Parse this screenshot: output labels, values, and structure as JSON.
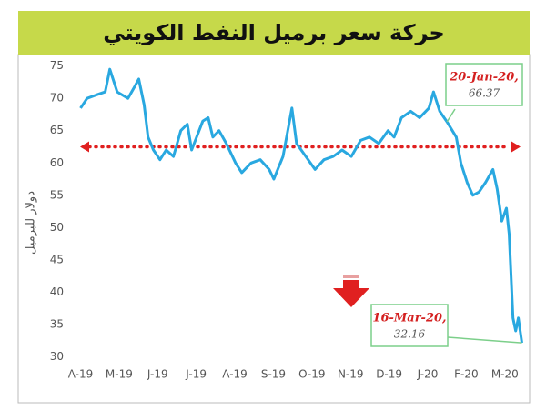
{
  "chart_data": {
    "type": "line",
    "title": "حركة سعر برميل النفط الكويتي",
    "y_label": "دولار للبرميل",
    "xlim": [
      -0.2,
      11.5
    ],
    "xticks": [
      {
        "value": 0,
        "label": "A-19"
      },
      {
        "value": 1,
        "label": "M-19"
      },
      {
        "value": 2,
        "label": "J-19"
      },
      {
        "value": 3,
        "label": "J-19"
      },
      {
        "value": 4,
        "label": "A-19"
      },
      {
        "value": 5,
        "label": "S-19"
      },
      {
        "value": 6,
        "label": "O-19"
      },
      {
        "value": 7,
        "label": "N-19"
      },
      {
        "value": 8,
        "label": "D-19"
      },
      {
        "value": 9,
        "label": "J-20"
      },
      {
        "value": 10,
        "label": "F-20"
      },
      {
        "value": 11,
        "label": "M-20"
      }
    ],
    "ylim": [
      29.5,
      76.5
    ],
    "yticks": [
      30,
      35,
      40,
      45,
      50,
      55,
      60,
      65,
      70,
      75
    ],
    "series": [
      {
        "color": "#29a8e0",
        "x": [
          0,
          0.17,
          0.4,
          0.64,
          0.76,
          0.95,
          1.23,
          1.42,
          1.51,
          1.65,
          1.75,
          1.89,
          2.06,
          2.22,
          2.41,
          2.6,
          2.77,
          2.88,
          3.17,
          3.31,
          3.43,
          3.59,
          3.78,
          4.02,
          4.18,
          4.42,
          4.66,
          4.89,
          5.01,
          5.25,
          5.48,
          5.6,
          5.84,
          6.08,
          6.31,
          6.55,
          6.78,
          7.02,
          7.26,
          7.49,
          7.73,
          7.97,
          8.13,
          8.32,
          8.56,
          8.79,
          9.03,
          9.15,
          9.31,
          9.5,
          9.74,
          9.86,
          10.02,
          10.17,
          10.33,
          10.5,
          10.69,
          10.8,
          10.92,
          11.04,
          11.11,
          11.21,
          11.28,
          11.35,
          11.44
        ],
        "values": [
          68.5,
          70,
          70.5,
          71,
          74.5,
          71,
          70,
          72,
          73,
          69,
          64,
          62,
          60.5,
          62,
          61,
          65,
          66,
          62,
          66.5,
          67,
          64,
          65,
          63,
          60,
          58.5,
          60,
          60.5,
          59,
          57.5,
          61,
          68.5,
          63,
          61,
          59,
          60.5,
          61,
          62,
          61,
          63.5,
          64,
          63,
          65,
          64,
          67,
          68,
          67,
          68.5,
          71,
          68,
          66.37,
          64,
          60,
          57,
          55,
          55.5,
          57,
          59,
          56,
          51,
          53,
          49,
          36,
          34,
          36,
          32.16
        ]
      }
    ],
    "reference_line": {
      "value": 62.5,
      "color": "#e02020"
    },
    "annotations": [
      {
        "date": "20-Jan-20,",
        "value": "66.37"
      },
      {
        "date": "16-Mar-20,",
        "value": "32.16"
      }
    ]
  }
}
